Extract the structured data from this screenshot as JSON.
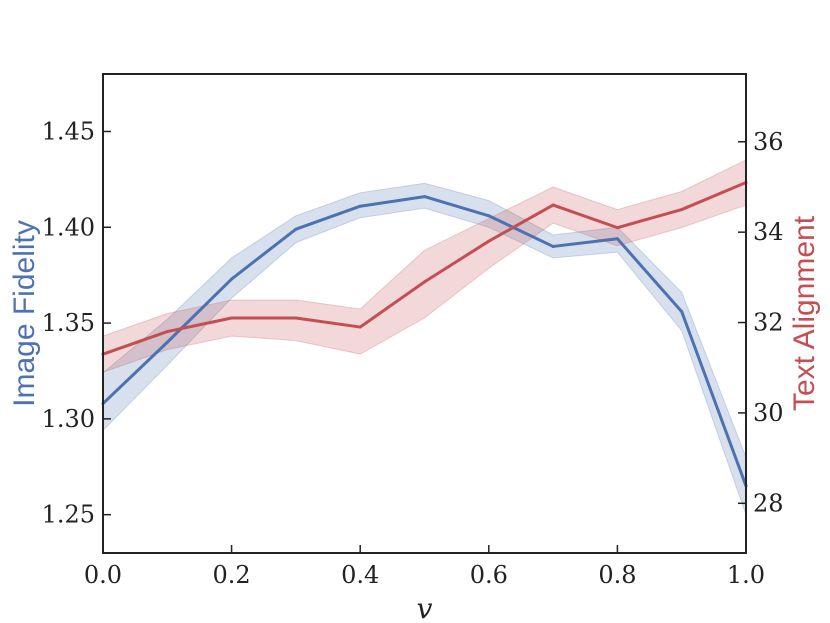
{
  "chart_data": {
    "type": "line",
    "xlabel": "v",
    "x": [
      0.0,
      0.1,
      0.2,
      0.3,
      0.4,
      0.5,
      0.6,
      0.7,
      0.8,
      0.9,
      1.0
    ],
    "xlim": [
      0.0,
      1.0
    ],
    "xticks": [
      0.0,
      0.2,
      0.4,
      0.6,
      0.8,
      1.0
    ],
    "xtick_labels": [
      "0.0",
      "0.2",
      "0.4",
      "0.6",
      "0.8",
      "1.0"
    ],
    "left_axis": {
      "label": "Image Fidelity",
      "color": "#4c72b0",
      "ylim": [
        1.23,
        1.48
      ],
      "ticks": [
        1.25,
        1.3,
        1.35,
        1.4,
        1.45
      ],
      "tick_labels": [
        "1.25",
        "1.30",
        "1.35",
        "1.40",
        "1.45"
      ]
    },
    "right_axis": {
      "label": "Text Alignment",
      "color": "#c44e52",
      "ylim": [
        26.9,
        37.5
      ],
      "ticks": [
        28,
        30,
        32,
        34,
        36
      ],
      "tick_labels": [
        "28",
        "30",
        "32",
        "34",
        "36"
      ]
    },
    "series": [
      {
        "axis": "left",
        "color": "#4c72b0",
        "values": [
          1.308,
          1.34,
          1.373,
          1.399,
          1.411,
          1.416,
          1.406,
          1.39,
          1.394,
          1.356,
          1.265
        ],
        "lower": [
          1.294,
          1.328,
          1.363,
          1.392,
          1.405,
          1.41,
          1.4,
          1.384,
          1.387,
          1.346,
          1.25
        ],
        "upper": [
          1.324,
          1.352,
          1.384,
          1.406,
          1.418,
          1.423,
          1.414,
          1.396,
          1.4,
          1.366,
          1.28
        ]
      },
      {
        "axis": "right",
        "color": "#c44e52",
        "values": [
          31.3,
          31.8,
          32.1,
          32.1,
          31.9,
          32.9,
          33.8,
          34.6,
          34.1,
          34.5,
          35.1
        ],
        "lower": [
          30.9,
          31.4,
          31.7,
          31.6,
          31.3,
          32.1,
          33.2,
          34.2,
          33.7,
          34.1,
          34.6
        ],
        "upper": [
          31.7,
          32.2,
          32.5,
          32.5,
          32.3,
          33.6,
          34.3,
          35.0,
          34.5,
          34.9,
          35.6
        ]
      }
    ],
    "grid": false,
    "legend": "none"
  }
}
